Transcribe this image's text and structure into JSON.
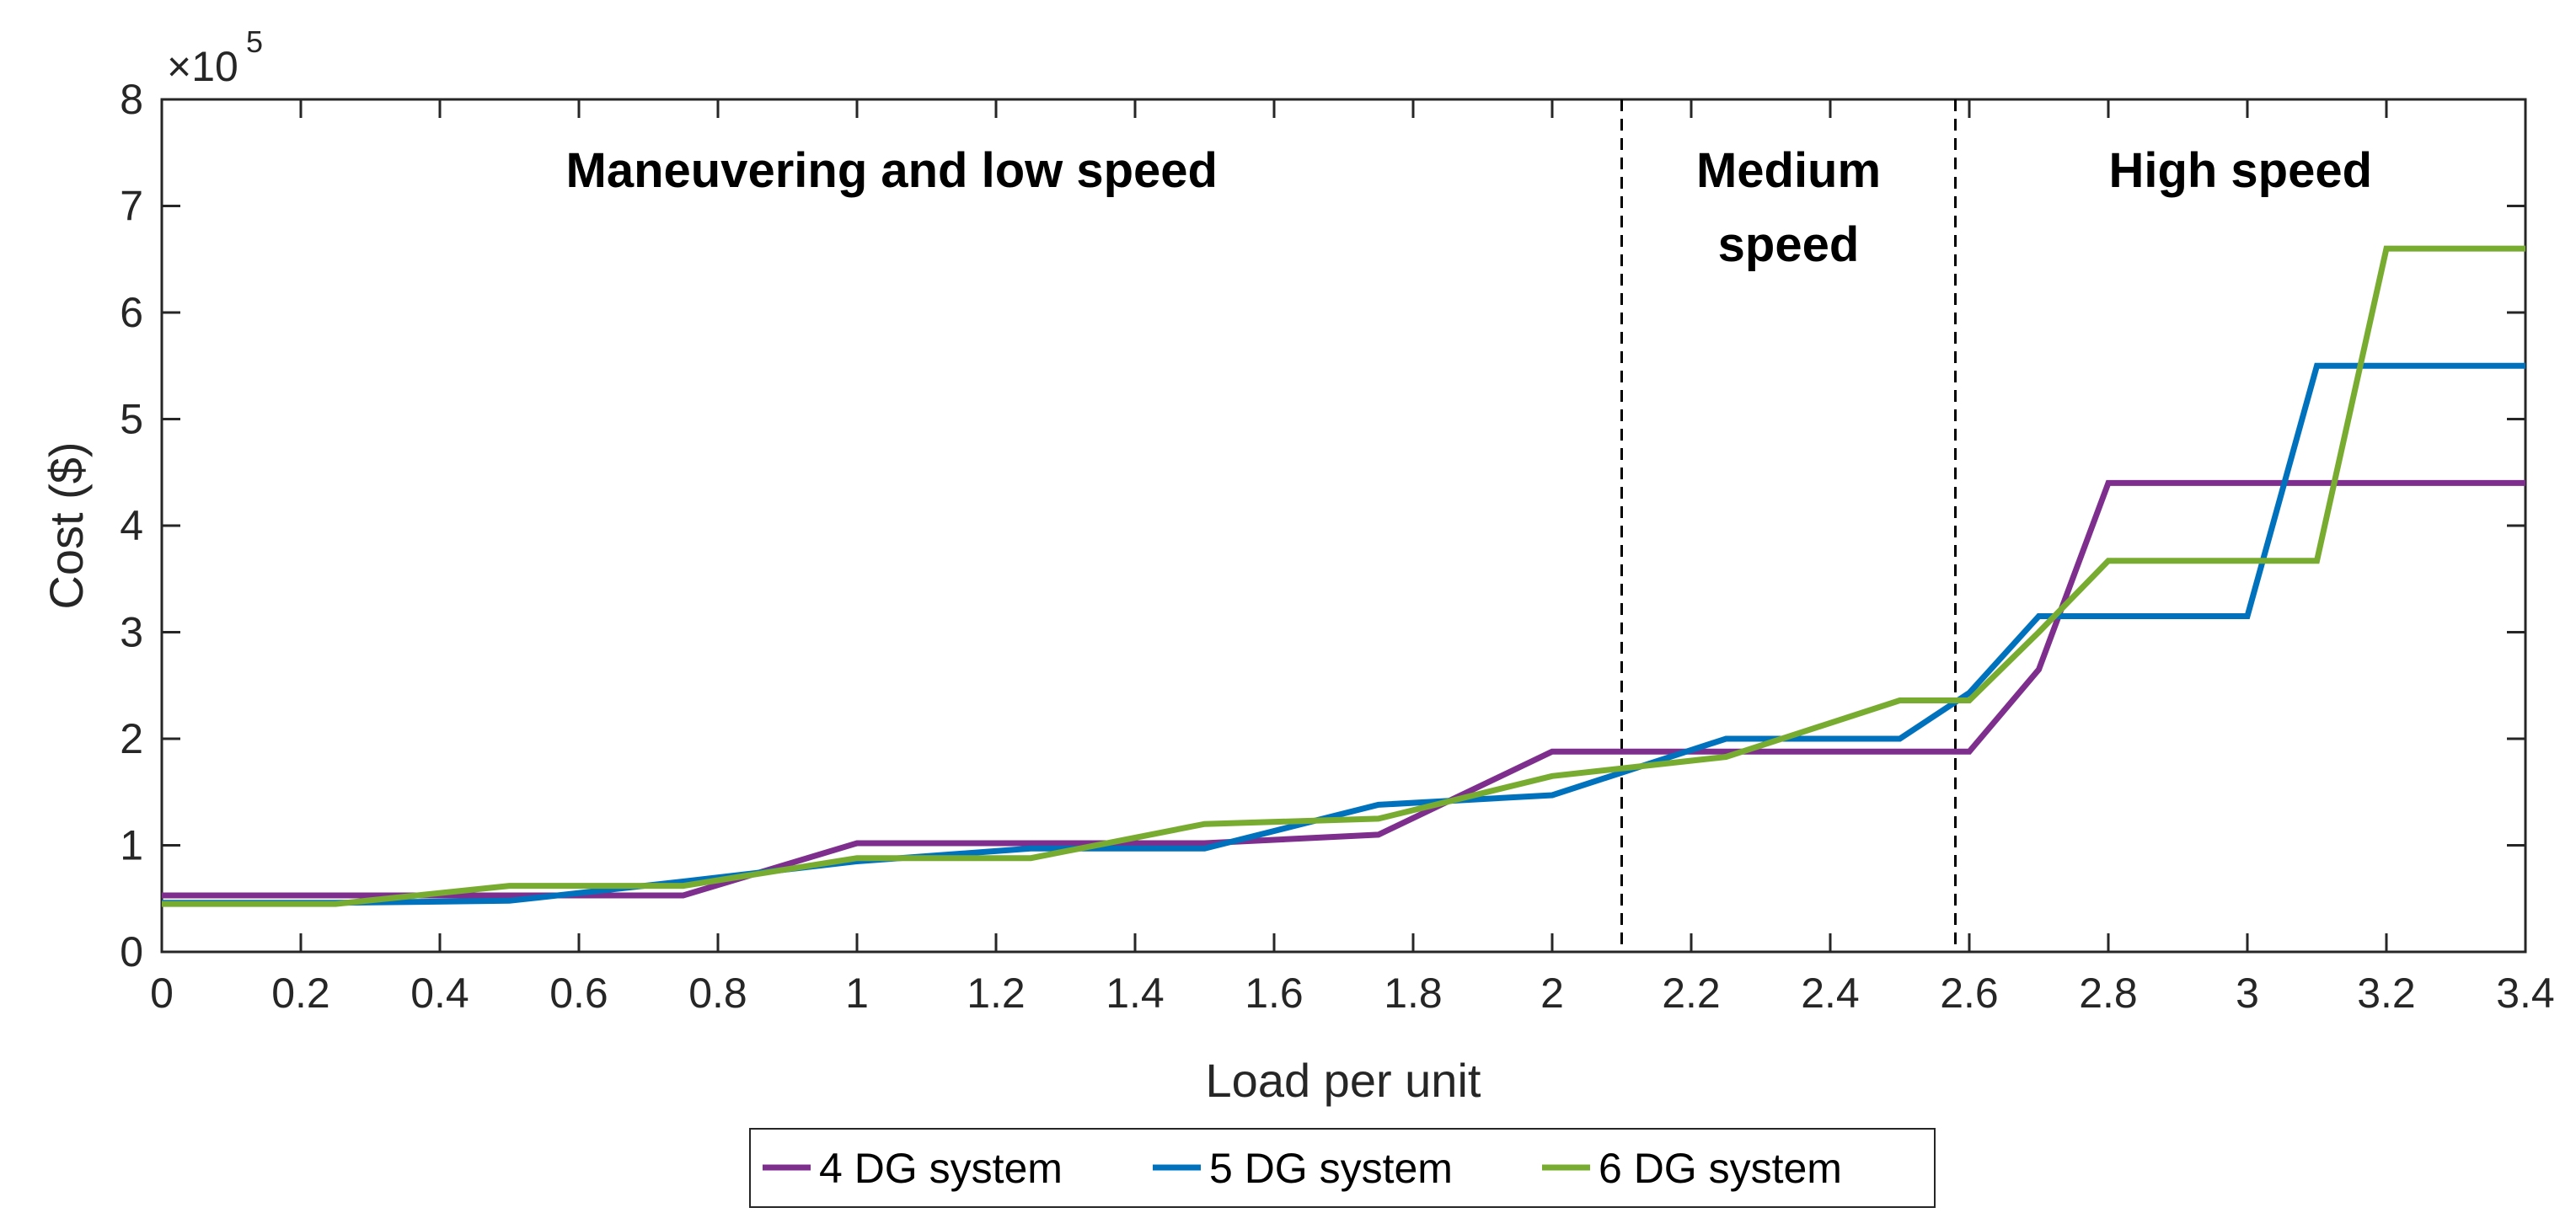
{
  "chart_data": {
    "type": "line",
    "title": "",
    "xlabel": "Load per unit",
    "ylabel": "Cost ($)",
    "xlim": [
      0,
      3.4
    ],
    "ylim": [
      0,
      8
    ],
    "y_multiplier_base": "×10",
    "y_multiplier_exp": "5",
    "x_ticks": [
      "0",
      "0.2",
      "0.4",
      "0.6",
      "0.8",
      "1",
      "1.2",
      "1.4",
      "1.6",
      "1.8",
      "2",
      "2.2",
      "2.4",
      "2.6",
      "2.8",
      "3",
      "3.2",
      "3.4"
    ],
    "y_ticks": [
      "0",
      "1",
      "2",
      "3",
      "4",
      "5",
      "6",
      "7",
      "8"
    ],
    "grid": false,
    "legend_position": "bottom-center",
    "regions": [
      {
        "label_lines": [
          "Maneuvering and low speed"
        ],
        "from": 0,
        "to": 2.1
      },
      {
        "label_lines": [
          "Medium",
          "speed"
        ],
        "from": 2.1,
        "to": 2.58
      },
      {
        "label_lines": [
          "High speed"
        ],
        "from": 2.58,
        "to": 3.4
      }
    ],
    "dividers": [
      2.1,
      2.58
    ],
    "series": [
      {
        "name": "4 DG system",
        "color": "#7E2F8E",
        "x": [
          0,
          0.25,
          0.5,
          0.75,
          1.0,
          1.25,
          1.5,
          1.75,
          2.0,
          2.25,
          2.5,
          2.6,
          2.7,
          2.8,
          2.9,
          3.0,
          3.1,
          3.2,
          3.4
        ],
        "y": [
          0.53,
          0.53,
          0.53,
          0.53,
          1.02,
          1.02,
          1.02,
          1.1,
          1.88,
          1.88,
          1.88,
          1.88,
          2.65,
          4.4,
          4.4,
          4.4,
          4.4,
          4.4,
          4.4
        ]
      },
      {
        "name": "5 DG system",
        "color": "#0072BD",
        "x": [
          0,
          0.25,
          0.5,
          0.75,
          1.0,
          1.25,
          1.5,
          1.75,
          2.0,
          2.25,
          2.5,
          2.6,
          2.7,
          2.8,
          2.9,
          3.0,
          3.1,
          3.2,
          3.4
        ],
        "y": [
          0.46,
          0.46,
          0.48,
          0.66,
          0.85,
          0.97,
          0.97,
          1.38,
          1.47,
          2.0,
          2.0,
          2.43,
          3.15,
          3.15,
          3.15,
          3.15,
          5.5,
          5.5,
          5.5
        ]
      },
      {
        "name": "6 DG system",
        "color": "#77AC30",
        "x": [
          0,
          0.25,
          0.5,
          0.75,
          1.0,
          1.25,
          1.5,
          1.75,
          2.0,
          2.25,
          2.5,
          2.6,
          2.7,
          2.8,
          2.9,
          3.0,
          3.1,
          3.2,
          3.4
        ],
        "y": [
          0.45,
          0.45,
          0.62,
          0.62,
          0.88,
          0.88,
          1.2,
          1.25,
          1.65,
          1.83,
          2.36,
          2.36,
          3.0,
          3.67,
          3.67,
          3.67,
          3.67,
          6.6,
          6.6
        ]
      }
    ]
  }
}
